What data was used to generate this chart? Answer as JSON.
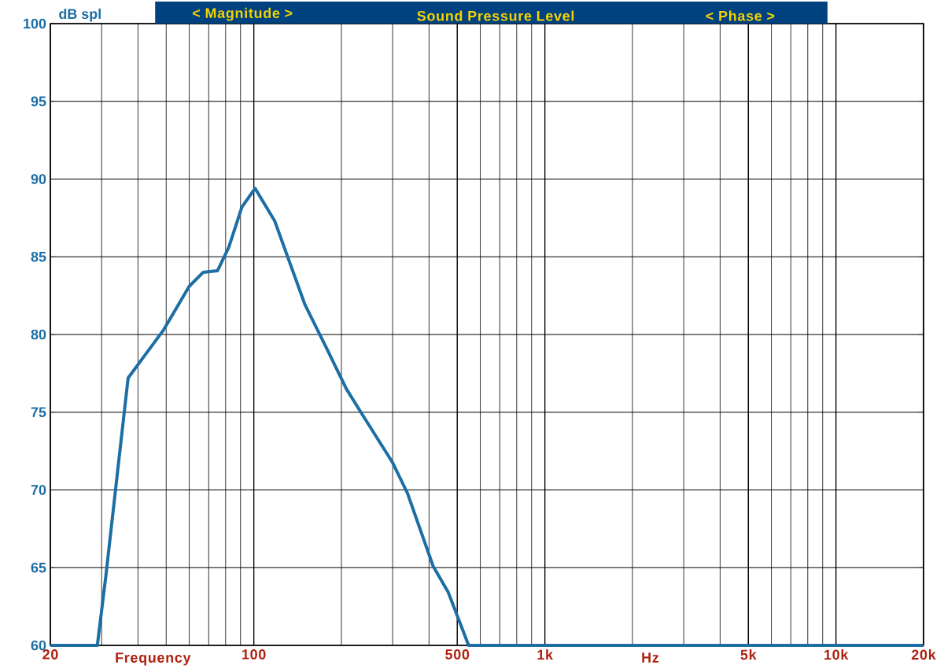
{
  "chart_data": {
    "type": "line",
    "title": "Sound Pressure Level",
    "ylabel": "dB spl",
    "xlabel": "Frequency",
    "annotations": [
      "< Magnitude >",
      "< Phase >",
      "Hz"
    ],
    "log": "x",
    "grid": true,
    "color": "#1c6ea4",
    "x": [
      20,
      29,
      31,
      34,
      37,
      42,
      49,
      60,
      67,
      75,
      82,
      91,
      101,
      118,
      150,
      177,
      208,
      235,
      299,
      337,
      413,
      466,
      547,
      20000
    ],
    "values": [
      60,
      60,
      64.4,
      71.1,
      77.2,
      78.6,
      80.3,
      83.1,
      84.0,
      84.1,
      85.6,
      88.2,
      89.4,
      87.3,
      81.9,
      79.2,
      76.5,
      74.9,
      71.8,
      69.8,
      65.1,
      63.4,
      60,
      60
    ],
    "xlim": [
      20,
      20000
    ],
    "ylim": [
      60,
      100
    ],
    "xticks": [
      20,
      100,
      500,
      {
        "value": 1000,
        "label": "1k"
      },
      {
        "value": 5000,
        "label": "5k"
      },
      {
        "value": 10000,
        "label": "10k"
      },
      {
        "value": 20000,
        "label": "20k"
      }
    ],
    "yticks": [
      60,
      65,
      70,
      75,
      80,
      85,
      90,
      95,
      100
    ]
  }
}
